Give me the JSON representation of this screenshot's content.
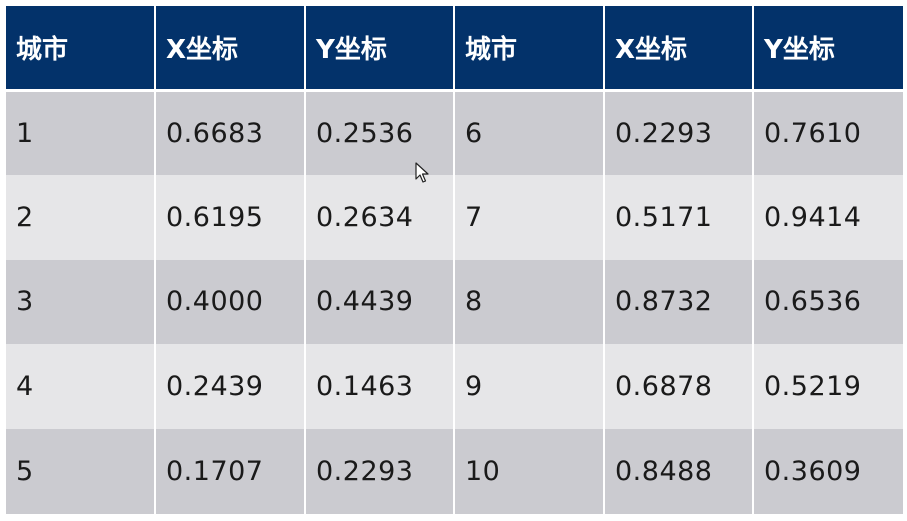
{
  "table": {
    "headers": [
      "城市",
      "X坐标",
      "Y坐标",
      "城市",
      "X坐标",
      "Y坐标"
    ],
    "rows": [
      [
        "1",
        "0.6683",
        "0.2536",
        "6",
        "0.2293",
        "0.7610"
      ],
      [
        "2",
        "0.6195",
        "0.2634",
        "7",
        "0.5171",
        "0.9414"
      ],
      [
        "3",
        "0.4000",
        "0.4439",
        "8",
        "0.8732",
        "0.6536"
      ],
      [
        "4",
        "0.2439",
        "0.1463",
        "9",
        "0.6878",
        "0.5219"
      ],
      [
        "5",
        "0.1707",
        "0.2293",
        "10",
        "0.8488",
        "0.3609"
      ]
    ]
  },
  "colors": {
    "header_bg": "#03326a",
    "header_text": "#ffffff",
    "row_dark": "#cbcbd0",
    "row_light": "#e6e6e8"
  },
  "icons": {
    "cursor": "mouse-pointer-icon"
  }
}
